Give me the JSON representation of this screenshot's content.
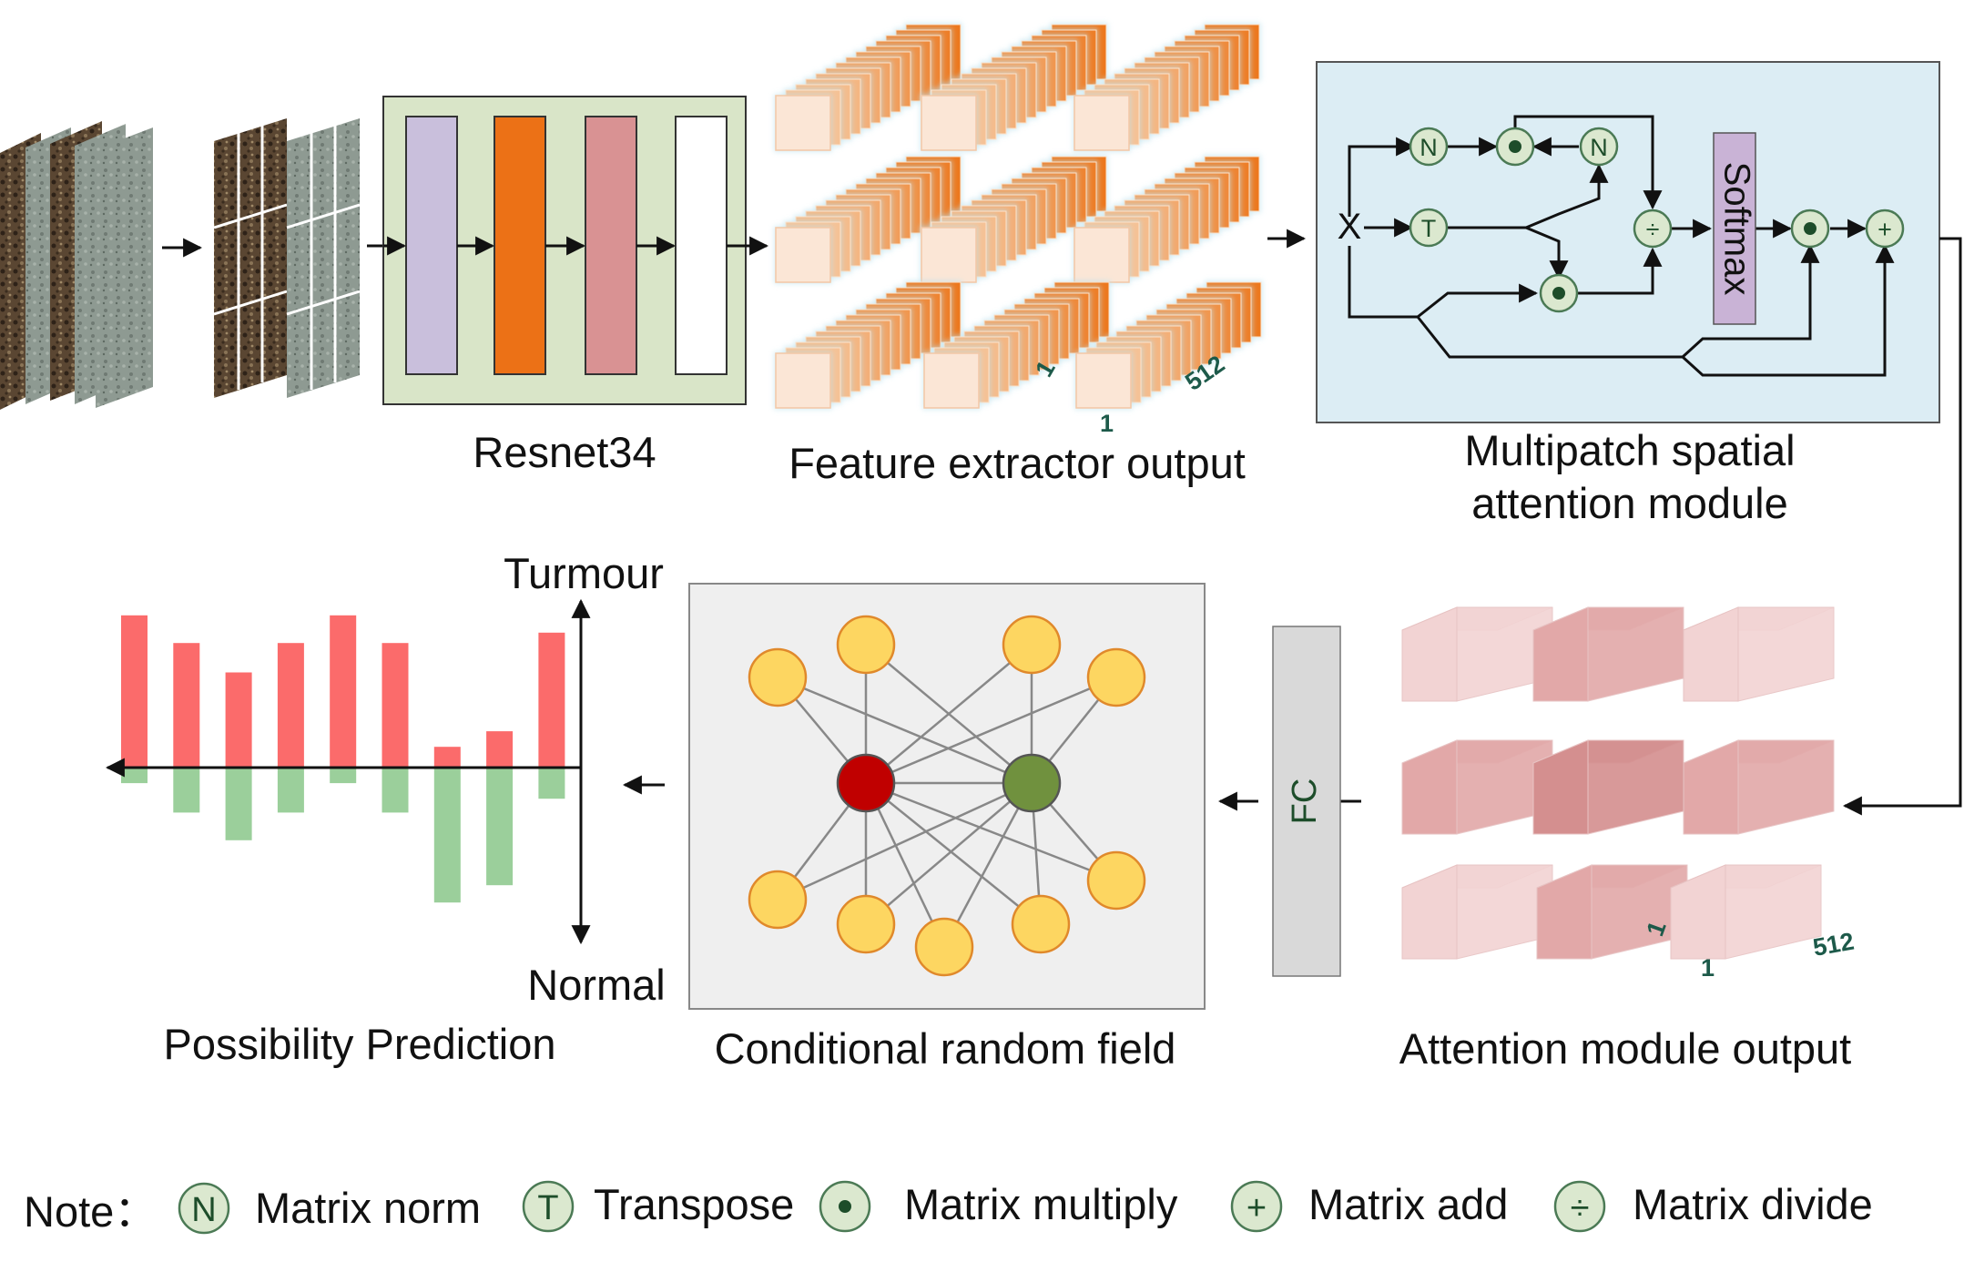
{
  "labels": {
    "resnet": "Resnet34",
    "feature": "Feature extractor output",
    "mpsa_line1": "Multipatch spatial",
    "mpsa_line2": "attention module",
    "attn_output": "Attention module output",
    "crf": "Conditional random field",
    "prediction": "Possibility Prediction",
    "tumour": "Turmour",
    "normal": "Normal",
    "fc": "FC",
    "softmax": "Softmax",
    "x": "X"
  },
  "dims": {
    "one": "1",
    "depth": "512"
  },
  "symbols": {
    "norm": "N",
    "transpose": "T",
    "multiply": "•",
    "add": "+",
    "divide": "÷"
  },
  "note": {
    "title": "Note：",
    "items": [
      {
        "symbol": "N",
        "label": "Matrix norm"
      },
      {
        "symbol": "T",
        "label": "Transpose"
      },
      {
        "symbol": "•",
        "label": "Matrix multiply"
      },
      {
        "symbol": "+",
        "label": "Matrix add"
      },
      {
        "symbol": "÷",
        "label": "Matrix divide"
      }
    ]
  },
  "colors": {
    "resnet_bg": "#d9e5c8",
    "resnet_blocks": [
      "#c9bfdc",
      "#ec7116",
      "#d99293",
      "#ffffff"
    ],
    "feature_orange": "#f6b07e",
    "attention_bg": "#dcedf4",
    "softmax_fill": "#c9b3d6",
    "crf_bg": "#efefef",
    "node_yellow": "#fdd661",
    "node_red": "#c00000",
    "node_green": "#70913e",
    "bar_red": "#fb6b6b",
    "bar_green": "#9bcf9b",
    "cube_pink": [
      "#f2d3d3",
      "#e2a8a8",
      "#d48f8f"
    ]
  },
  "chart_data": {
    "type": "bar",
    "series": [
      {
        "name": "",
        "values": [
          0.88,
          0.72,
          0.55,
          0.72,
          0.88,
          0.72,
          0.12,
          0.21,
          0.78
        ]
      },
      {
        "name": "",
        "values": [
          -0.09,
          -0.26,
          -0.42,
          -0.26,
          -0.09,
          -0.26,
          -0.78,
          -0.68,
          -0.18
        ]
      }
    ],
    "ylim": [
      -1,
      1
    ]
  }
}
